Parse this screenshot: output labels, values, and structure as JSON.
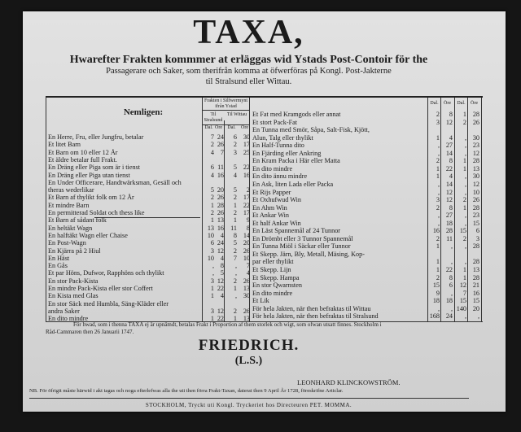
{
  "header": {
    "title": "TAXA,",
    "line1": "Hwarefter Frakten kommmer at erläggas wid Ystads Post-Contoir för the",
    "line2": "Passagerare och Saker, som therifrån komma at öfwerföras på Kongl. Post-Jakterne",
    "line3": "til Stralsund eller Wittau."
  },
  "table": {
    "left_heading": "Nemligen:",
    "freight_heading": "Frakten i Silfwermynt ifrån Ystad",
    "to_stralsund": "Til Stralsund",
    "to_wittau": "Til Wittau",
    "dal": "Dal.",
    "ore": "Öre",
    "left_rows": [
      {
        "lines": [
          "En Herre, Fru, eller Jungfru, betalar"
        ],
        "v": [
          "7",
          "24",
          "6",
          "30"
        ]
      },
      {
        "lines": [
          "Et litet Barn"
        ],
        "v": [
          "2",
          "26",
          "2",
          "17"
        ]
      },
      {
        "lines": [
          "Et Barn om 10 eller 12 År"
        ],
        "v": [
          "4",
          "7",
          "3",
          "25"
        ]
      },
      {
        "lines": [
          "    Et äldre betalar full Frakt."
        ],
        "v": [
          "",
          "",
          "",
          ""
        ]
      },
      {
        "lines": [
          "En Dräng eller Piga som är i tienst"
        ],
        "v": [
          "6",
          "11",
          "5",
          "22"
        ]
      },
      {
        "lines": [
          "En Dräng eller Piga utan tienst"
        ],
        "v": [
          "4",
          "16",
          "4",
          "16"
        ]
      },
      {
        "lines": [
          "En Under Officerare, Handtwärksman, Gesäll och",
          "    theras wederlikar"
        ],
        "v": [
          "5",
          "20",
          "5",
          "2"
        ]
      },
      {
        "lines": [
          "Et Barn af thylikt folk om 12 År"
        ],
        "v": [
          "2",
          "26",
          "2",
          "17"
        ]
      },
      {
        "lines": [
          "Et mindre Barn"
        ],
        "v": [
          "1",
          "28",
          "1",
          "22"
        ]
      },
      {
        "lines": [
          "En permitterad Soldat och thess like"
        ],
        "v": [
          "2",
          "26",
          "2",
          "17"
        ]
      },
      {
        "lines": [
          "Et Barn af sådant folk"
        ],
        "v": [
          "1",
          "13",
          "1",
          "9"
        ]
      },
      {
        "lines": [
          "En heltäkt Wagn"
        ],
        "v": [
          "13",
          "16",
          "11",
          "8"
        ]
      },
      {
        "lines": [
          "En halftäkt Wagn eller Chaise"
        ],
        "v": [
          "10",
          "4",
          "8",
          "14"
        ]
      },
      {
        "lines": [
          "En Post-Wagn"
        ],
        "v": [
          "6",
          "24",
          "5",
          "20"
        ]
      },
      {
        "lines": [
          "En Kjärra på 2 Hiul"
        ],
        "v": [
          "3",
          "12",
          "2",
          "26"
        ]
      },
      {
        "lines": [
          "En Häst"
        ],
        "v": [
          "10",
          "4",
          "7",
          "10"
        ]
      },
      {
        "lines": [
          "En Gås"
        ],
        "v": [
          ",",
          "8",
          ",",
          "7"
        ]
      },
      {
        "lines": [
          "Et par Höns, Dufwor, Rapphöns och thylikt"
        ],
        "v": [
          ",",
          "5",
          ",",
          "4"
        ]
      },
      {
        "lines": [
          "En stor Pack-Kista"
        ],
        "v": [
          "3",
          "12",
          "2",
          "26"
        ]
      },
      {
        "lines": [
          "En mindre Pack-Kista eller stor Coffert"
        ],
        "v": [
          "1",
          "22",
          "1",
          "13"
        ]
      },
      {
        "lines": [
          "En Kista med Glas"
        ],
        "v": [
          "1",
          "4",
          ",",
          "30"
        ]
      },
      {
        "lines": [
          "En stor Säck med Humbla, Säng-Kläder eller",
          "    andra Saker"
        ],
        "v": [
          "3",
          "12",
          "2",
          "26"
        ]
      },
      {
        "lines": [
          "En dito mindre"
        ],
        "v": [
          "1",
          "22",
          "1",
          "13"
        ]
      }
    ],
    "right_rows": [
      {
        "lines": [
          "Et Fat med Kramgods eller annat"
        ],
        "v": [
          "2",
          "8",
          "1",
          "28"
        ]
      },
      {
        "lines": [
          "Et stort Pack-Fat"
        ],
        "v": [
          "3",
          "12",
          "2",
          "26"
        ]
      },
      {
        "lines": [
          "En Tunna med Smör, Såpa, Salt-Fisk, Kjött,",
          "    Alun, Talg eller thylikt"
        ],
        "v": [
          "1",
          "4",
          ",",
          "30"
        ]
      },
      {
        "lines": [
          "En Half-Tunna dito"
        ],
        "v": [
          ",",
          "27",
          ",",
          "23"
        ]
      },
      {
        "lines": [
          "En Fjärding eller Ankring"
        ],
        "v": [
          ",",
          "14",
          ",",
          "12"
        ]
      },
      {
        "lines": [
          "En Kram Packa i Här eller Matta"
        ],
        "v": [
          "2",
          "8",
          "1",
          "28"
        ]
      },
      {
        "lines": [
          "En dito mindre"
        ],
        "v": [
          "1",
          "22",
          "1",
          "13"
        ]
      },
      {
        "lines": [
          "En dito ännu mindre"
        ],
        "v": [
          "1",
          "4",
          ",",
          "30"
        ]
      },
      {
        "lines": [
          "En Ask, liten Lada eller Packa"
        ],
        "v": [
          ",",
          "14",
          ",",
          "12"
        ]
      },
      {
        "lines": [
          "Et Rijs Papper"
        ],
        "v": [
          ",",
          "12",
          ",",
          "10"
        ]
      },
      {
        "lines": [
          "Et Oxhufwud Win"
        ],
        "v": [
          "3",
          "12",
          "2",
          "26"
        ]
      },
      {
        "lines": [
          "En Ahm Win"
        ],
        "v": [
          "2",
          "8",
          "1",
          "28"
        ]
      },
      {
        "lines": [
          "Et Ankar Win"
        ],
        "v": [
          ",",
          "27",
          ",",
          "23"
        ]
      },
      {
        "lines": [
          "Et half Ankar Win"
        ],
        "v": [
          ",",
          "18",
          ",",
          "15"
        ]
      },
      {
        "lines": [
          "En Läst Spannemål af 24 Tunnor"
        ],
        "v": [
          "16",
          "28",
          "15",
          "6"
        ]
      },
      {
        "lines": [
          "En Drömbt eller 3 Tunnor Spannemål"
        ],
        "v": [
          "2",
          "11",
          "2",
          "3"
        ]
      },
      {
        "lines": [
          "En Tunna Miöl i Säckar eller Tunnor"
        ],
        "v": [
          "1",
          ",",
          ",",
          "28"
        ]
      },
      {
        "lines": [
          "Et Skepp. Järn, Bly, Metall, Mäsing, Kop-",
          "    par eller thylikt"
        ],
        "v": [
          "1",
          ",",
          ",",
          "28"
        ]
      },
      {
        "lines": [
          "Et Skepp. Lijn"
        ],
        "v": [
          "1",
          "22",
          "1",
          "13"
        ]
      },
      {
        "lines": [
          "Et Skepp. Hampa"
        ],
        "v": [
          "2",
          "8",
          "1",
          "28"
        ]
      },
      {
        "lines": [
          "En stor Qwarnsten"
        ],
        "v": [
          "15",
          "6",
          "12",
          "21"
        ]
      },
      {
        "lines": [
          "En dito mindre"
        ],
        "v": [
          "9",
          ",",
          "7",
          "16"
        ]
      },
      {
        "lines": [
          "Et Lik"
        ],
        "v": [
          "18",
          "18",
          "15",
          "15"
        ]
      },
      {
        "lines": [
          "För hela Jakten, när then befraktas til Wittau"
        ],
        "v": [
          ",",
          ",",
          "140",
          "20"
        ]
      },
      {
        "lines": [
          "För hela Jakten, när then befraktas til Stralsund"
        ],
        "v": [
          "168",
          "24",
          ",",
          ","
        ]
      }
    ]
  },
  "footer": {
    "note1": "För hwad, som i thenna TAXA ej är upnämdt, betalas Frakt i Proportion af them storlek och wigt, som ofwan utsatt finnes.  Stockholm i",
    "note2": "Råd-Cammaren then 26 Januarii 1747.",
    "king": "FRIEDRICH.",
    "seal": "(L.S.)",
    "signer": "LEONHARD KLINCKOWSTRÖM.",
    "nb": "NB. För öfrigit måste härwid i akt tagas och noga efterlefwas alla the uti then förra Frakt-Taxan, daterat then 9 April År 1728, föreskrifne Articlar.",
    "printer": "STOCKHOLM, Tryckt uti Kongl. Tryckeriet hos Directeuren PET. MOMMA."
  }
}
